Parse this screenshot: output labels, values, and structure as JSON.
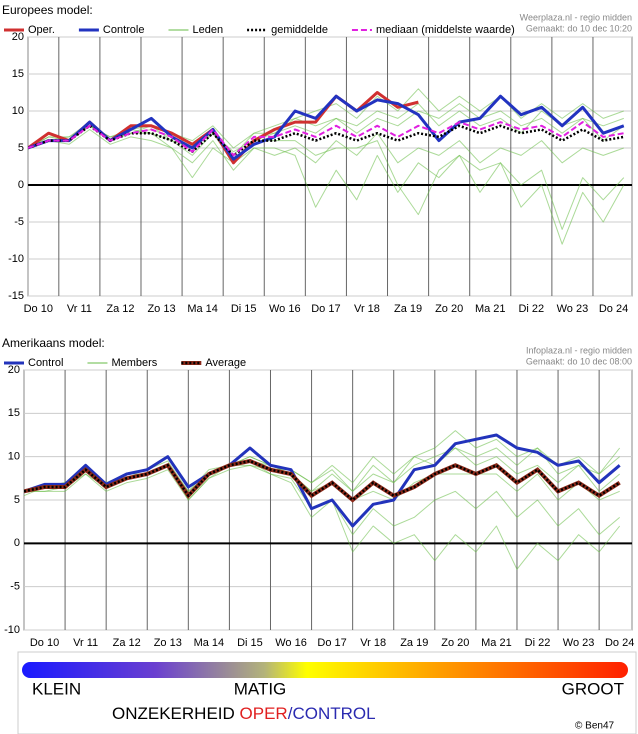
{
  "chart_data": [
    {
      "type": "line",
      "title": "Europees model:",
      "credits": [
        "Weerplaza.nl - regio midden",
        "Gemaakt: do 10 dec 10:20"
      ],
      "x": [
        0,
        0.5,
        1,
        1.5,
        2,
        2.5,
        3,
        3.5,
        4,
        4.5,
        5,
        5.5,
        6,
        6.5,
        7,
        7.5,
        8,
        8.5,
        9,
        9.5,
        10,
        10.5,
        11,
        11.5,
        12,
        12.5,
        13,
        13.5,
        14,
        14.5
      ],
      "xlim": [
        0,
        14.7
      ],
      "xticks": [
        {
          "value": 0.25,
          "label": "Do 10"
        },
        {
          "value": 1.25,
          "label": "Vr 11"
        },
        {
          "value": 2.25,
          "label": "Za 12"
        },
        {
          "value": 3.25,
          "label": "Zo 13"
        },
        {
          "value": 4.25,
          "label": "Ma 14"
        },
        {
          "value": 5.25,
          "label": "Di 15"
        },
        {
          "value": 6.25,
          "label": "Wo 16"
        },
        {
          "value": 7.25,
          "label": "Do 17"
        },
        {
          "value": 8.25,
          "label": "Vr 18"
        },
        {
          "value": 9.25,
          "label": "Za 19"
        },
        {
          "value": 10.25,
          "label": "Zo 20"
        },
        {
          "value": 11.25,
          "label": "Ma 21"
        },
        {
          "value": 12.25,
          "label": "Di 22"
        },
        {
          "value": 13.25,
          "label": "Wo 23"
        },
        {
          "value": 14.25,
          "label": "Do 24"
        }
      ],
      "ylim": [
        -15,
        20
      ],
      "yticks": [
        -15,
        -10,
        -5,
        0,
        5,
        10,
        15,
        20
      ],
      "grid": true,
      "zero_line": true,
      "series": [
        {
          "name": "Oper.",
          "color": "#d03030",
          "style": "solid",
          "width": 3,
          "values": [
            5,
            7,
            6,
            8.5,
            6,
            8,
            8,
            7,
            5.5,
            7.5,
            3,
            6,
            7.5,
            8.5,
            8.5,
            12,
            10,
            12.5,
            10.5,
            11.2,
            null,
            null,
            null,
            null,
            null,
            null,
            null,
            null,
            null,
            null
          ]
        },
        {
          "name": "Controle",
          "color": "#2233c0",
          "style": "solid",
          "width": 3,
          "values": [
            5,
            6,
            6,
            8.5,
            6,
            7.5,
            9,
            6.5,
            5,
            7.5,
            3.5,
            5.5,
            6.5,
            10,
            9,
            12,
            10,
            11.5,
            11,
            9.5,
            6,
            8.5,
            9,
            12,
            9.5,
            10.5,
            8,
            10.5,
            7,
            8
          ]
        },
        {
          "name": "Leden",
          "color": "#66bb44",
          "style": "solid",
          "width": 1,
          "members": [
            [
              5,
              6.5,
              6,
              8.5,
              6,
              7.5,
              7,
              5,
              3,
              6,
              2,
              5,
              4,
              5,
              3,
              6,
              4,
              7,
              3,
              5,
              4,
              6,
              3,
              5,
              4,
              6,
              3,
              5,
              4,
              5
            ],
            [
              5,
              6,
              6.5,
              8,
              6.5,
              7.5,
              8,
              7,
              6,
              8,
              5,
              7,
              8,
              9,
              8,
              9,
              7,
              9,
              8,
              10,
              9,
              11,
              9,
              10,
              8,
              9,
              7,
              9,
              8,
              9
            ],
            [
              5,
              6,
              5.5,
              7.5,
              5.5,
              6.5,
              6,
              5,
              1,
              5,
              3,
              5,
              5,
              4,
              -3,
              2,
              -2,
              4,
              -1,
              3,
              1,
              4,
              2,
              3,
              0,
              2,
              -6,
              1,
              -2,
              1
            ],
            [
              5,
              6.5,
              6.5,
              8.5,
              6,
              7,
              8,
              6,
              5,
              7.5,
              4,
              7,
              7,
              9,
              10,
              11,
              9,
              12,
              10,
              13,
              10,
              12,
              10,
              12,
              9,
              11,
              9,
              11,
              9,
              10
            ],
            [
              5,
              6,
              6,
              8,
              6,
              7,
              7,
              6,
              4,
              7,
              3,
              6,
              6,
              6,
              4,
              5,
              5,
              6,
              0,
              -4,
              2,
              4,
              -1,
              3,
              -3,
              0,
              -8,
              -1,
              -5,
              0
            ],
            [
              5,
              6,
              6,
              8,
              6.5,
              7,
              7.5,
              6.5,
              5,
              7,
              4.5,
              6,
              7,
              8,
              7,
              9,
              8,
              10,
              9,
              11,
              8,
              10,
              8,
              9,
              7,
              10,
              8,
              9,
              6,
              8
            ]
          ]
        },
        {
          "name": "gemiddelde",
          "color": "#000000",
          "style": "dotted",
          "width": 2.5,
          "values": [
            5,
            6,
            6,
            8,
            6,
            7,
            7,
            6,
            4.5,
            7,
            4,
            6,
            6,
            7,
            6,
            7,
            6,
            7,
            6,
            7,
            6.5,
            8,
            7,
            8,
            7,
            7.5,
            6,
            7.5,
            6,
            6.5
          ]
        },
        {
          "name": "mediaan (middelste waarde)",
          "color": "#e020e0",
          "style": "dashed",
          "width": 2,
          "values": [
            5,
            6,
            6,
            8,
            6,
            7,
            7.5,
            6.5,
            4.5,
            7.5,
            4,
            6.5,
            6.5,
            7.5,
            6.5,
            8,
            6.5,
            8,
            6.5,
            8,
            7,
            8.5,
            7.5,
            8.5,
            7.5,
            8,
            6.5,
            8.5,
            6.5,
            7
          ]
        }
      ]
    },
    {
      "type": "line",
      "title": "Amerikaans model:",
      "credits": [
        "Infoplaza.nl - regio midden",
        "Gemaakt: do 10 dec 08:00"
      ],
      "x": [
        0,
        0.5,
        1,
        1.5,
        2,
        2.5,
        3,
        3.5,
        4,
        4.5,
        5,
        5.5,
        6,
        6.5,
        7,
        7.5,
        8,
        8.5,
        9,
        9.5,
        10,
        10.5,
        11,
        11.5,
        12,
        12.5,
        13,
        13.5,
        14,
        14.5
      ],
      "xlim": [
        0,
        14.8
      ],
      "xticks": [
        {
          "value": 0.5,
          "label": "Do 10"
        },
        {
          "value": 1.5,
          "label": "Vr 11"
        },
        {
          "value": 2.5,
          "label": "Za 12"
        },
        {
          "value": 3.5,
          "label": "Zo 13"
        },
        {
          "value": 4.5,
          "label": "Ma 14"
        },
        {
          "value": 5.5,
          "label": "Di 15"
        },
        {
          "value": 6.5,
          "label": "Wo 16"
        },
        {
          "value": 7.5,
          "label": "Do 17"
        },
        {
          "value": 8.5,
          "label": "Vr 18"
        },
        {
          "value": 9.5,
          "label": "Za 19"
        },
        {
          "value": 10.5,
          "label": "Zo 20"
        },
        {
          "value": 11.5,
          "label": "Ma 21"
        },
        {
          "value": 12.5,
          "label": "Di 22"
        },
        {
          "value": 13.5,
          "label": "Wo 23"
        },
        {
          "value": 14.5,
          "label": "Do 24"
        }
      ],
      "ylim": [
        -10,
        20
      ],
      "yticks": [
        -10,
        -5,
        0,
        5,
        10,
        15,
        20
      ],
      "grid": true,
      "zero_line": true,
      "series": [
        {
          "name": "Control",
          "color": "#2233bb",
          "style": "solid",
          "width": 3,
          "values": [
            6,
            6.8,
            6.8,
            9,
            6.8,
            8,
            8.5,
            10,
            6.5,
            8,
            9,
            11,
            9,
            8.5,
            4,
            5,
            2,
            4.5,
            5,
            8.5,
            9,
            11.5,
            12,
            12.5,
            11,
            10.5,
            9,
            9.5,
            7,
            9
          ]
        },
        {
          "name": "Members",
          "color": "#66bb44",
          "style": "solid",
          "width": 1,
          "members": [
            [
              6,
              6.5,
              7,
              9,
              6.5,
              8,
              8.5,
              9.5,
              6,
              8.5,
              9,
              10,
              9,
              8.5,
              7,
              8.5,
              6,
              8,
              7,
              9,
              10,
              11,
              10,
              11,
              9,
              11,
              8,
              9,
              8,
              10
            ],
            [
              6,
              6,
              6,
              8,
              6,
              7,
              7.5,
              8.5,
              5,
              7.5,
              8.5,
              9,
              8,
              7,
              3,
              5,
              1,
              4,
              2,
              3,
              5,
              6,
              4,
              6,
              3,
              5,
              2,
              4,
              1,
              3
            ],
            [
              5.5,
              6.5,
              6.5,
              8.5,
              6.5,
              7.5,
              8,
              9,
              5.5,
              8,
              9,
              9.5,
              9,
              8,
              6,
              8,
              6,
              9,
              7,
              10,
              11,
              13,
              11,
              12,
              10,
              11,
              9,
              10,
              8,
              11
            ],
            [
              6,
              6.5,
              7,
              8.5,
              7,
              8,
              8,
              9,
              5,
              7.5,
              9,
              9.5,
              8,
              7.5,
              4,
              5,
              -1,
              2,
              0,
              1,
              -2,
              1,
              -1,
              2,
              -3,
              0,
              -2,
              1,
              -1,
              2
            ],
            [
              6,
              6.5,
              6.5,
              8,
              6.5,
              7.5,
              8,
              9,
              6,
              8,
              9,
              10,
              9,
              8,
              6,
              7,
              5,
              6,
              5,
              7,
              8,
              8,
              8,
              8,
              6,
              8,
              5,
              7,
              5,
              6
            ],
            [
              6,
              6,
              6.5,
              8.5,
              6.5,
              7.5,
              8,
              9,
              5.5,
              8,
              9,
              9,
              8.5,
              8.5,
              7,
              9,
              7,
              10,
              8,
              10,
              9,
              11,
              9,
              10,
              8,
              9,
              7,
              9,
              6,
              8
            ]
          ]
        },
        {
          "name": "Average",
          "color": "#000000",
          "under_color": "#8b2a1a",
          "style": "dotted",
          "width": 2.5,
          "values": [
            6,
            6.5,
            6.5,
            8.5,
            6.5,
            7.5,
            8,
            9,
            5.5,
            8,
            9,
            9.5,
            8.5,
            8,
            5.5,
            7,
            5,
            7,
            5.5,
            6.5,
            8,
            9,
            8,
            9,
            7,
            8.5,
            6,
            7,
            5.5,
            7
          ]
        }
      ]
    }
  ],
  "uncertainty_bar": {
    "low": "KLEIN",
    "mid": "MATIG",
    "high": "GROOT",
    "caption": "ONZEKERHEID",
    "oper": "OPER",
    "control": "/CONTROL",
    "copyright": "© Ben47"
  }
}
